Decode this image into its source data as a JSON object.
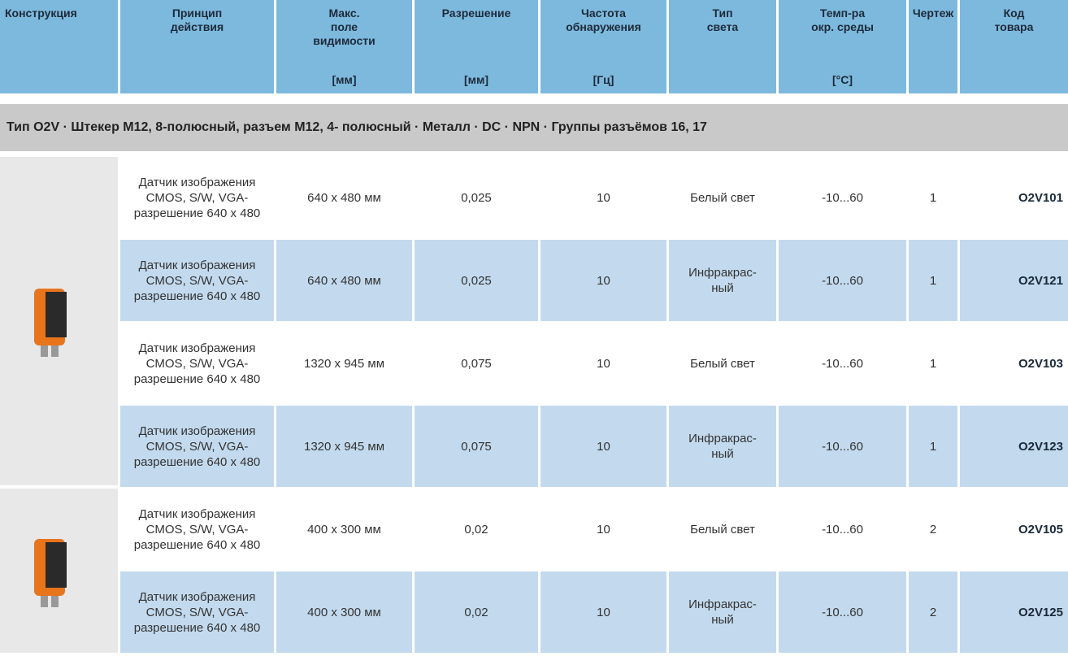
{
  "header": {
    "columns": [
      {
        "lines": [
          "Конструкция"
        ]
      },
      {
        "lines": [
          "Принцип",
          "действия"
        ]
      },
      {
        "lines": [
          "Макс.",
          "поле",
          "видимости"
        ],
        "unit": "[мм]"
      },
      {
        "lines": [
          "Разрешение"
        ],
        "unit": "[мм]"
      },
      {
        "lines": [
          "Частота",
          "обнаружения"
        ],
        "unit": "[Гц]"
      },
      {
        "lines": [
          "Тип",
          "света"
        ]
      },
      {
        "lines": [
          "Темп-ра",
          "окр. среды"
        ],
        "unit": "[°C]"
      },
      {
        "lines": [
          "Чертеж"
        ]
      },
      {
        "lines": [
          "Код",
          "товара"
        ]
      }
    ]
  },
  "group": {
    "title": "Тип O2V · Штекер M12, 8-полюсный,  разъем M12, 4- полюсный · Металл · DC · NPN · Группы разъёмов 16, 17"
  },
  "table": {
    "rows": [
      [
        [
          "Датчик изображения",
          "CMOS, S/W, VGA-",
          "разрешение 640 x 480"
        ],
        "640 x 480 мм",
        "0,025",
        10,
        [
          "Белый свет"
        ],
        "-10...60",
        1,
        "O2V101"
      ],
      [
        [
          "Датчик изображения",
          "CMOS, S/W, VGA-",
          "разрешение 640 x 480"
        ],
        "640 x 480 мм",
        "0,025",
        10,
        [
          "Инфракрас-",
          "ный"
        ],
        "-10...60",
        1,
        "O2V121"
      ],
      [
        [
          "Датчик изображения",
          "CMOS, S/W, VGA-",
          "разрешение 640 x 480"
        ],
        "1320 x 945 мм",
        "0,075",
        10,
        [
          "Белый свет"
        ],
        "-10...60",
        1,
        "O2V103"
      ],
      [
        [
          "Датчик изображения",
          "CMOS, S/W, VGA-",
          "разрешение 640 x 480"
        ],
        "1320 x 945 мм",
        "0,075",
        10,
        [
          "Инфракрас-",
          "ный"
        ],
        "-10...60",
        1,
        "O2V123"
      ],
      [
        [
          "Датчик изображения",
          "CMOS, S/W, VGA-",
          "разрешение 640 x 480"
        ],
        "400 x 300 мм",
        "0,02",
        10,
        [
          "Белый свет"
        ],
        "-10...60",
        2,
        "O2V105"
      ],
      [
        [
          "Датчик изображения",
          "CMOS, S/W, VGA-",
          "разрешение 640 x 480"
        ],
        "400 x 300 мм",
        "0,02",
        10,
        [
          "Инфракрас-",
          "ный"
        ],
        "-10...60",
        2,
        "O2V125"
      ]
    ]
  }
}
